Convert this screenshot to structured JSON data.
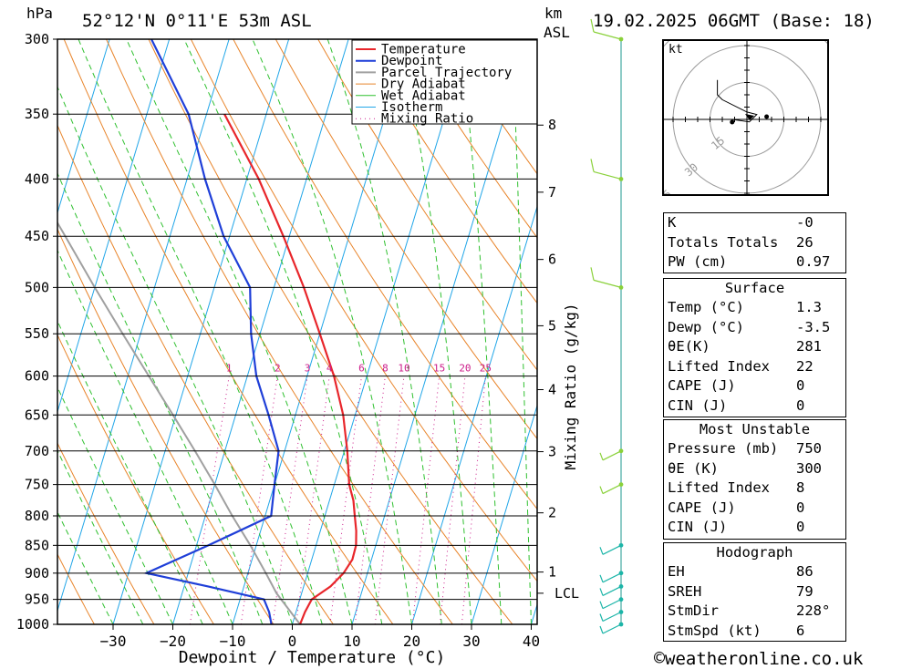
{
  "header": {
    "location": "52°12'N  0°11'E  53m  ASL",
    "datetime": "19.02.2025  06GMT  (Base: 18)",
    "pressure_unit": "hPa",
    "height_unit": "km",
    "height_unit_sub": "ASL"
  },
  "chart_data": {
    "type": "skew-t log-p",
    "xlabel": "Dewpoint / Temperature (°C)",
    "right_axis_label": "Mixing Ratio (g/kg)",
    "xlim": [
      -40,
      40
    ],
    "ylim_hpa": [
      1000,
      300
    ],
    "pressure_ticks": [
      300,
      350,
      400,
      450,
      500,
      550,
      600,
      650,
      700,
      750,
      800,
      850,
      900,
      950,
      1000
    ],
    "temperature_ticks": [
      -30,
      -20,
      -10,
      0,
      10,
      20,
      30,
      40
    ],
    "height_ticks": [
      {
        "km": "8",
        "p": 358
      },
      {
        "km": "7",
        "p": 411
      },
      {
        "km": "6",
        "p": 472
      },
      {
        "km": "5",
        "p": 541
      },
      {
        "km": "4",
        "p": 617
      },
      {
        "km": "3",
        "p": 701
      },
      {
        "km": "2",
        "p": 795
      },
      {
        "km": "1",
        "p": 898
      },
      {
        "km": "LCL",
        "p": 938
      }
    ],
    "mixing_ratio_labels": [
      "1",
      "2",
      "3",
      "4",
      "6",
      "8",
      "10",
      "15",
      "20",
      "25"
    ],
    "mixing_ratio_values": [
      1,
      2,
      3,
      4,
      6,
      8,
      10,
      15,
      20,
      25
    ],
    "legend": [
      "Temperature",
      "Dewpoint",
      "Parcel Trajectory",
      "Dry Adiabat",
      "Wet Adiabat",
      "Isotherm",
      "Mixing Ratio"
    ],
    "legend_location": "top-right",
    "colors": {
      "temperature": "#e8262b",
      "dewpoint": "#1f3fd8",
      "parcel": "#a0a0a0",
      "dry_adiabat": "#e8842a",
      "wet_adiabat": "#2fc02f",
      "isotherm": "#21a6e8",
      "mixing_ratio": "#cc1d8a",
      "wind": "#1cb5a8"
    },
    "series": [
      {
        "name": "Temperature",
        "points": [
          {
            "p": 1000,
            "t": 1.3
          },
          {
            "p": 975,
            "t": 1.5
          },
          {
            "p": 950,
            "t": 2.0
          },
          {
            "p": 925,
            "t": 4.5
          },
          {
            "p": 900,
            "t": 6.0
          },
          {
            "p": 875,
            "t": 6.8
          },
          {
            "p": 850,
            "t": 6.7
          },
          {
            "p": 825,
            "t": 6.0
          },
          {
            "p": 800,
            "t": 5.0
          },
          {
            "p": 775,
            "t": 4.0
          },
          {
            "p": 750,
            "t": 2.5
          },
          {
            "p": 700,
            "t": 0.5
          },
          {
            "p": 650,
            "t": -2.0
          },
          {
            "p": 600,
            "t": -5.5
          },
          {
            "p": 550,
            "t": -10.0
          },
          {
            "p": 500,
            "t": -15.0
          },
          {
            "p": 450,
            "t": -21.0
          },
          {
            "p": 400,
            "t": -28.0
          },
          {
            "p": 350,
            "t": -37.0
          }
        ]
      },
      {
        "name": "Dewpoint",
        "points": [
          {
            "p": 1000,
            "t": -3.5
          },
          {
            "p": 975,
            "t": -4.5
          },
          {
            "p": 950,
            "t": -6.0
          },
          {
            "p": 925,
            "t": -16.0
          },
          {
            "p": 900,
            "t": -27.0
          },
          {
            "p": 850,
            "t": -18.0
          },
          {
            "p": 800,
            "t": -9.0
          },
          {
            "p": 750,
            "t": -10.0
          },
          {
            "p": 700,
            "t": -11.0
          },
          {
            "p": 650,
            "t": -14.5
          },
          {
            "p": 600,
            "t": -18.5
          },
          {
            "p": 550,
            "t": -21.5
          },
          {
            "p": 500,
            "t": -24.0
          },
          {
            "p": 450,
            "t": -31.0
          },
          {
            "p": 400,
            "t": -37.0
          },
          {
            "p": 350,
            "t": -43.0
          },
          {
            "p": 300,
            "t": -53.0
          }
        ]
      },
      {
        "name": "Parcel Trajectory",
        "points": [
          {
            "p": 1000,
            "t": 1.3
          },
          {
            "p": 938,
            "t": -4.2
          },
          {
            "p": 900,
            "t": -7.0
          },
          {
            "p": 850,
            "t": -11.0
          },
          {
            "p": 800,
            "t": -15.5
          },
          {
            "p": 750,
            "t": -20.0
          },
          {
            "p": 700,
            "t": -25.0
          },
          {
            "p": 650,
            "t": -30.5
          },
          {
            "p": 600,
            "t": -36.5
          },
          {
            "p": 550,
            "t": -43.0
          },
          {
            "p": 500,
            "t": -50.0
          },
          {
            "p": 450,
            "t": -57.5
          },
          {
            "p": 400,
            "t": -66.0
          },
          {
            "p": 350,
            "t": -75.0
          },
          {
            "p": 320,
            "t": -81.0
          }
        ]
      }
    ],
    "wind_levels_hpa": [
      300,
      400,
      500,
      700,
      750,
      850,
      900,
      925,
      950,
      975,
      1000
    ]
  },
  "hodograph": {
    "unit": "kt",
    "ring_labels": [
      "15",
      "30",
      "45"
    ],
    "trace_kt": [
      [
        -12,
        16
      ],
      [
        -12,
        10
      ],
      [
        -10,
        8
      ],
      [
        0,
        3
      ],
      [
        4,
        2
      ],
      [
        1,
        -1
      ],
      [
        -6,
        0
      ]
    ]
  },
  "indices": {
    "rows": [
      {
        "label": "K",
        "value": "-0"
      },
      {
        "label": "Totals Totals",
        "value": "26"
      },
      {
        "label": "PW (cm)",
        "value": "0.97"
      }
    ]
  },
  "surface": {
    "title": "Surface",
    "rows": [
      {
        "label": "Temp (°C)",
        "value": "1.3"
      },
      {
        "label": "Dewp (°C)",
        "value": "-3.5"
      },
      {
        "label": "θE(K)",
        "value": "281"
      },
      {
        "label": "Lifted Index",
        "value": "22"
      },
      {
        "label": "CAPE (J)",
        "value": "0"
      },
      {
        "label": "CIN (J)",
        "value": "0"
      }
    ]
  },
  "most_unstable": {
    "title": "Most Unstable",
    "rows": [
      {
        "label": "Pressure (mb)",
        "value": "750"
      },
      {
        "label": "θE (K)",
        "value": "300"
      },
      {
        "label": "Lifted Index",
        "value": "8"
      },
      {
        "label": "CAPE (J)",
        "value": "0"
      },
      {
        "label": "CIN (J)",
        "value": "0"
      }
    ]
  },
  "hodograph_stats": {
    "title": "Hodograph",
    "rows": [
      {
        "label": "EH",
        "value": "86"
      },
      {
        "label": "SREH",
        "value": "79"
      },
      {
        "label": "StmDir",
        "value": "228°"
      },
      {
        "label": "StmSpd (kt)",
        "value": "6"
      }
    ]
  },
  "footer": {
    "credit": "weatheronline.co.uk",
    "copyright_symbol": "©"
  }
}
